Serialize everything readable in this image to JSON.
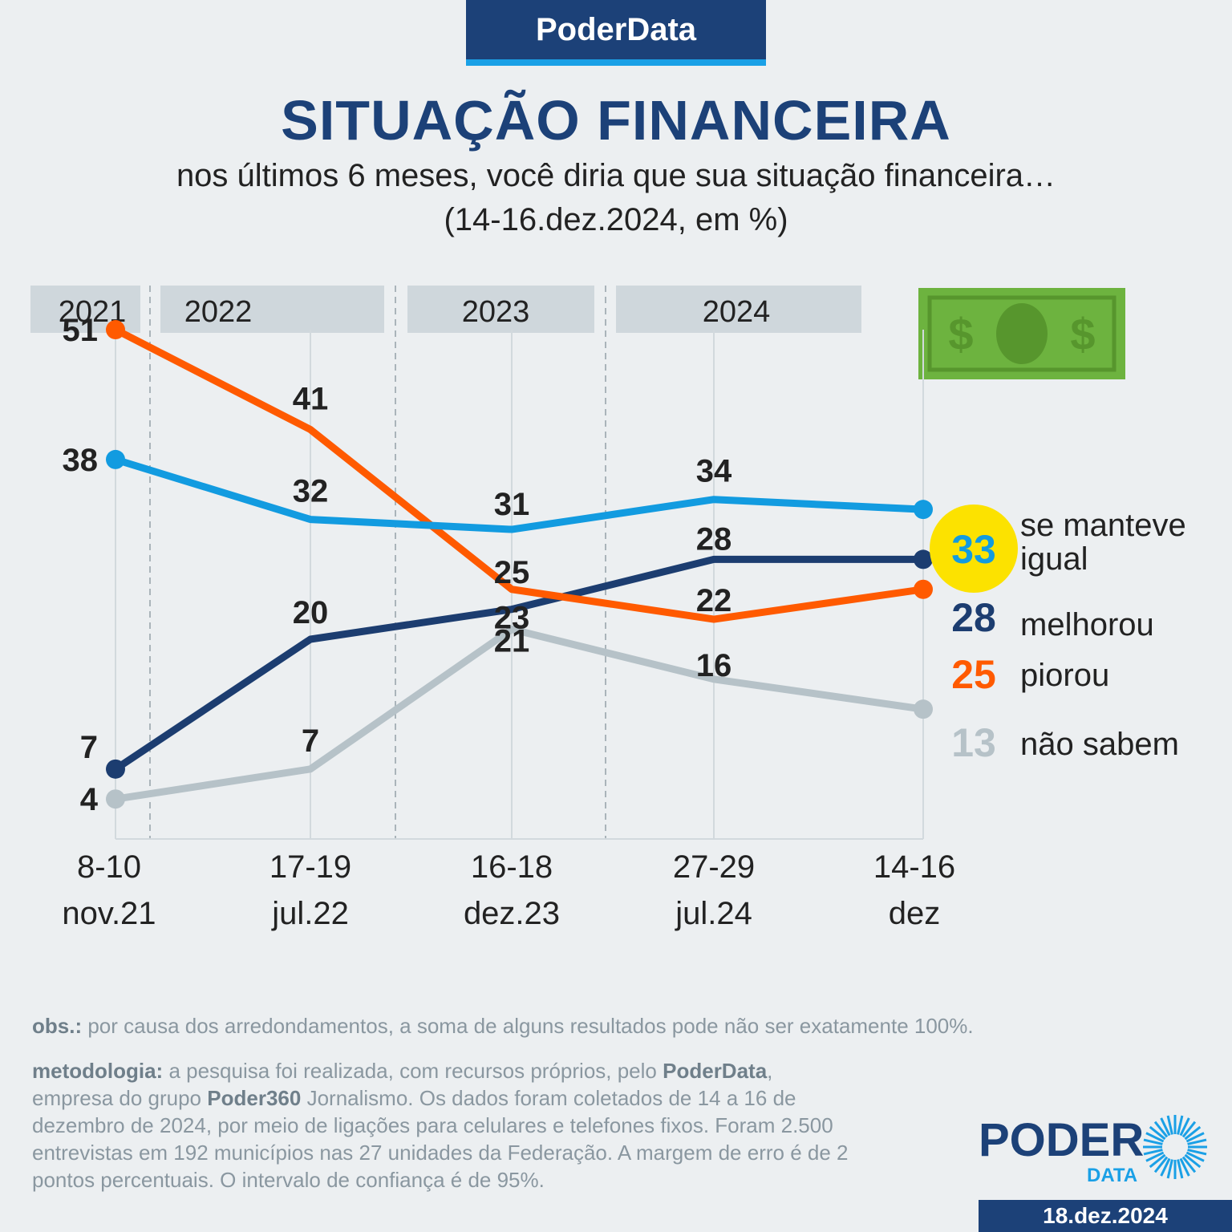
{
  "brand": "PoderData",
  "title": "SITUAÇÃO FINANCEIRA",
  "subtitle": "nos últimos 6 meses, você diria que sua situação financeira…",
  "subtitle2": "(14-16.dez.2024, em %)",
  "years": [
    "2021",
    "2022",
    "2023",
    "2024"
  ],
  "colors": {
    "brand_blue": "#1c4178",
    "accent_blue": "#1aa0e6",
    "se_manteve_igual": "#129be0",
    "melhorou": "#1c3d70",
    "piorou": "#ff5a00",
    "nao_sabem": "#b6c2c8",
    "highlight_circle": "#fce200",
    "money_green": "#6db33f"
  },
  "chart_data": {
    "type": "line",
    "categories": [
      [
        "8-10",
        "nov.21"
      ],
      [
        "17-19",
        "jul.22"
      ],
      [
        "16-18",
        "dez.23"
      ],
      [
        "27-29",
        "jul.24"
      ],
      [
        "14-16",
        "dez"
      ]
    ],
    "series": [
      {
        "name": "piorou",
        "values": [
          51,
          41,
          25,
          22,
          25
        ]
      },
      {
        "name": "se manteve igual",
        "values": [
          38,
          32,
          31,
          34,
          33
        ]
      },
      {
        "name": "melhorou",
        "values": [
          7,
          20,
          23,
          28,
          28
        ]
      },
      {
        "name": "não sabem",
        "values": [
          4,
          7,
          21,
          16,
          13
        ]
      }
    ],
    "ylim": [
      0,
      60
    ],
    "grid": false,
    "legend": "right, labels at line ends",
    "legend_labels": [
      {
        "series": "se manteve igual",
        "value": "33",
        "line1": "se manteve",
        "line2": "igual"
      },
      {
        "series": "melhorou",
        "value": "28",
        "line1": "melhorou",
        "line2": ""
      },
      {
        "series": "piorou",
        "value": "25",
        "line1": "piorou",
        "line2": ""
      },
      {
        "series": "não sabem",
        "value": "13",
        "line1": "não sabem",
        "line2": ""
      }
    ]
  },
  "notes": {
    "obs_label": "obs.:",
    "obs_text": "por causa dos arredondamentos, a soma de alguns resultados pode não ser exatamente 100%.",
    "method_label": "metodologia:",
    "method_text_1": "a pesquisa foi realizada, com recursos próprios, pelo",
    "method_brand": "PoderData",
    "method_text_2": ",",
    "method_line2_a": "empresa do grupo",
    "method_line2_brand": "Poder360",
    "method_line2_b": "Jornalismo. Os dados foram coletados de 14 a 16 de",
    "method_line3": "dezembro de 2024, por meio de ligações para celulares e telefones fixos. Foram 2.500",
    "method_line4": "entrevistas em 192 municípios nas 27 unidades da Federação. A margem de erro é de 2",
    "method_line5": "pontos percentuais. O intervalo de confiança é de 95%."
  },
  "logo": {
    "main": "PODER",
    "sub": "DATA"
  },
  "date": "18.dez.2024"
}
